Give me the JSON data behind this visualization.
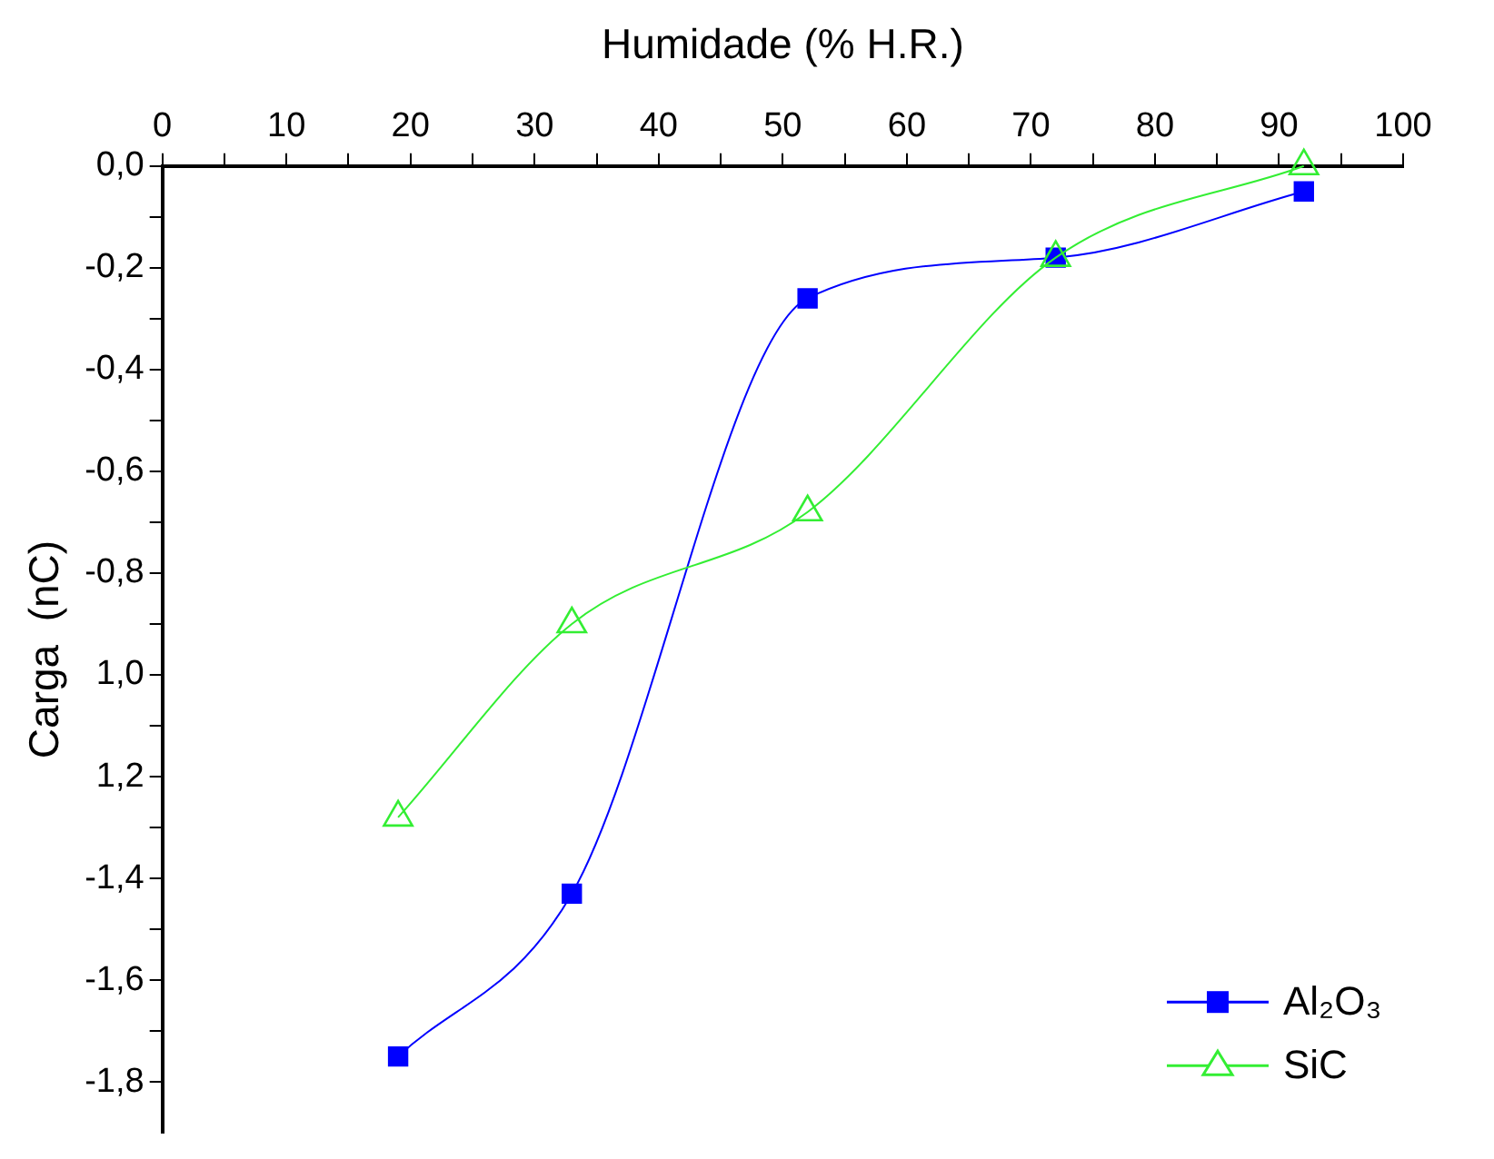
{
  "chart_data": {
    "type": "line",
    "xlabel": "Humidade (% H.R.)",
    "ylabel": "Carga  (nC)",
    "xlim": [
      0,
      100
    ],
    "xticks": [
      0,
      {
        "value": 5,
        "label": null
      },
      10,
      {
        "value": 15,
        "label": null
      },
      20,
      {
        "value": 25,
        "label": null
      },
      30,
      {
        "value": 35,
        "label": null
      },
      40,
      {
        "value": 45,
        "label": null
      },
      50,
      {
        "value": 55,
        "label": null
      },
      60,
      {
        "value": 65,
        "label": null
      },
      70,
      {
        "value": 75,
        "label": null
      },
      80,
      {
        "value": 85,
        "label": null
      },
      90,
      {
        "value": 95,
        "label": null
      },
      100
    ],
    "ylim": [
      -1.9,
      0
    ],
    "yticks": [
      {
        "value": 0,
        "label": "0,0"
      },
      {
        "value": -0.1,
        "label": null
      },
      {
        "value": -0.2,
        "label": "-0,2"
      },
      {
        "value": -0.3,
        "label": null
      },
      {
        "value": -0.4,
        "label": "-0,4"
      },
      {
        "value": -0.5,
        "label": null
      },
      {
        "value": -0.6,
        "label": "-0,6"
      },
      {
        "value": -0.7,
        "label": null
      },
      {
        "value": -0.8,
        "label": "-0,8"
      },
      {
        "value": -0.9,
        "label": null
      },
      {
        "value": -1.0,
        "label": "1,0"
      },
      {
        "value": -1.1,
        "label": null
      },
      {
        "value": -1.2,
        "label": "1,2"
      },
      {
        "value": -1.3,
        "label": null
      },
      {
        "value": -1.4,
        "label": "-1,4"
      },
      {
        "value": -1.5,
        "label": null
      },
      {
        "value": -1.6,
        "label": "-1,6"
      },
      {
        "value": -1.7,
        "label": null
      },
      {
        "value": -1.8,
        "label": "-1,8"
      }
    ],
    "x": [
      19,
      33,
      52,
      72,
      92
    ],
    "series": [
      {
        "name": "Al₂O₃",
        "color": "#0000ff",
        "marker": "square",
        "values": [
          -1.75,
          -1.43,
          -0.26,
          -0.18,
          -0.05
        ]
      },
      {
        "name": "SiC",
        "color": "#33ee33",
        "marker": "triangle",
        "values": [
          -1.28,
          -0.9,
          -0.68,
          -0.18,
          0.0
        ]
      }
    ],
    "grid": false,
    "legend": "bottom right",
    "line_style": "solid"
  }
}
